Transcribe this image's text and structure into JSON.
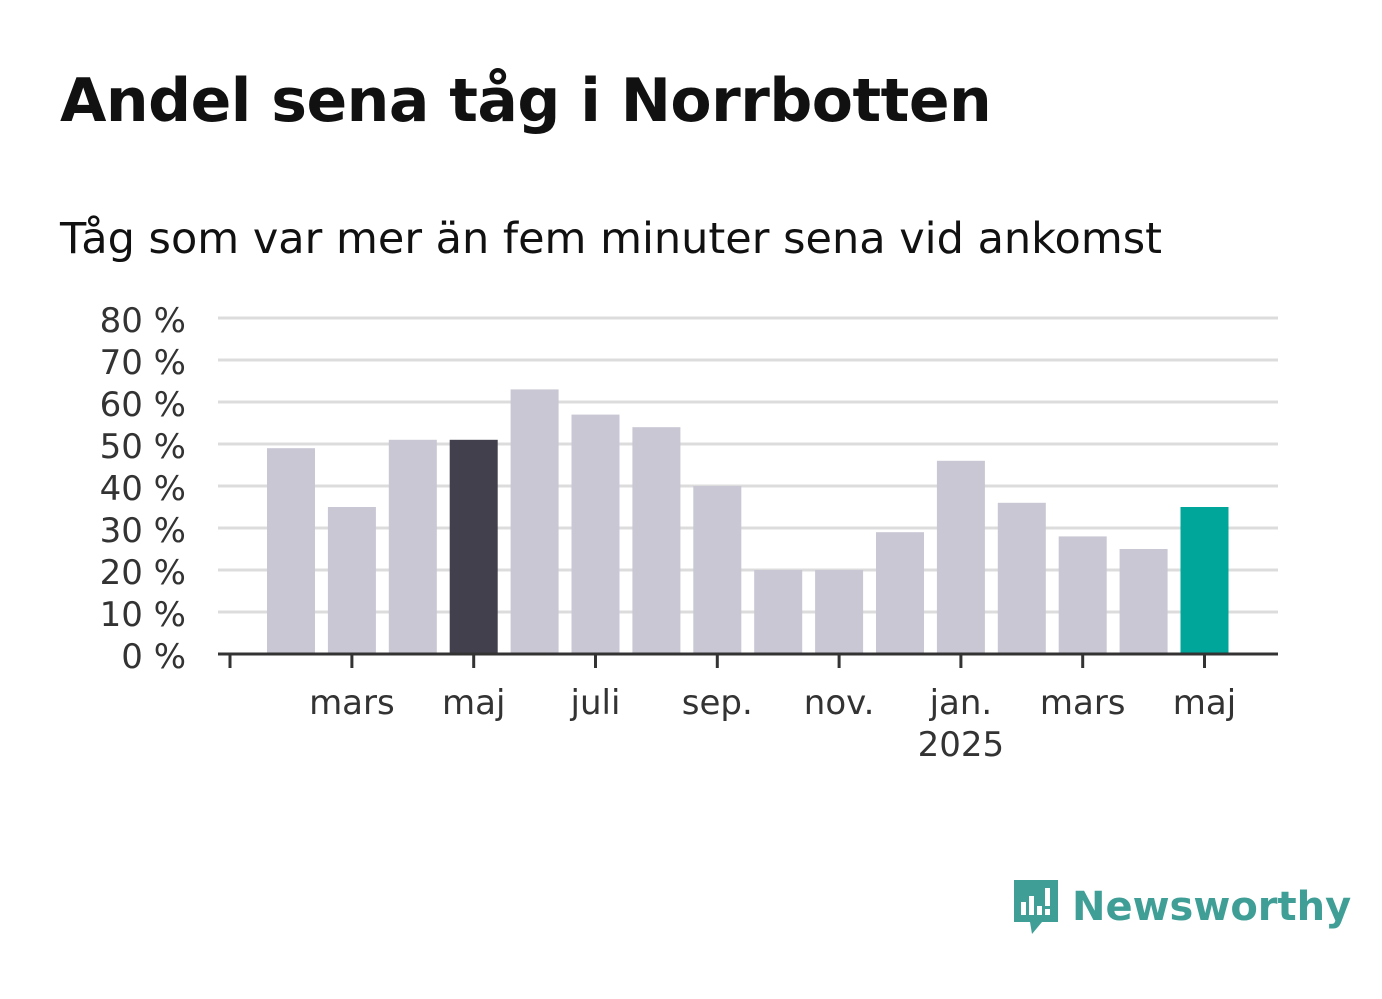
{
  "title": "Andel sena tåg i Norrbotten",
  "subtitle": "Tåg som var mer än fem minuter sena vid ankomst",
  "brand": {
    "name": "Newsworthy",
    "logo_icon": "bar-chart-speech-bubble-icon"
  },
  "colors": {
    "bar_default": "#c8c7d3",
    "bar_highlight_prev": "#42404c",
    "bar_highlight_current": "#00a69a",
    "grid": "#dcdcdc",
    "axis": "#333333",
    "text": "#333333",
    "brand": "#3f9f97"
  },
  "chart_data": {
    "type": "bar",
    "categories": [
      "2024-02",
      "2024-03",
      "2024-04",
      "2024-05",
      "2024-06",
      "2024-07",
      "2024-08",
      "2024-09",
      "2024-10",
      "2024-11",
      "2024-12",
      "2025-01",
      "2025-02",
      "2025-03",
      "2025-04",
      "2025-05"
    ],
    "values": [
      49,
      35,
      51,
      51,
      63,
      57,
      54,
      40,
      20,
      20,
      29,
      46,
      36,
      28,
      25,
      35
    ],
    "highlight": {
      "2024-05": "bar_highlight_prev",
      "2025-05": "bar_highlight_current"
    },
    "x_tick_labels": [
      {
        "category": "2024-03",
        "label": "mars"
      },
      {
        "category": "2024-05",
        "label": "maj"
      },
      {
        "category": "2024-07",
        "label": "juli"
      },
      {
        "category": "2024-09",
        "label": "sep."
      },
      {
        "category": "2024-11",
        "label": "nov."
      },
      {
        "category": "2025-01",
        "label": "jan.",
        "sublabel": "2025"
      },
      {
        "category": "2025-03",
        "label": "mars"
      },
      {
        "category": "2025-05",
        "label": "maj"
      }
    ],
    "y_ticks": [
      0,
      10,
      20,
      30,
      40,
      50,
      60,
      70,
      80
    ],
    "y_tick_suffix": " %",
    "ylim": [
      0,
      80
    ],
    "grid": true,
    "xlabel": "",
    "ylabel": ""
  }
}
